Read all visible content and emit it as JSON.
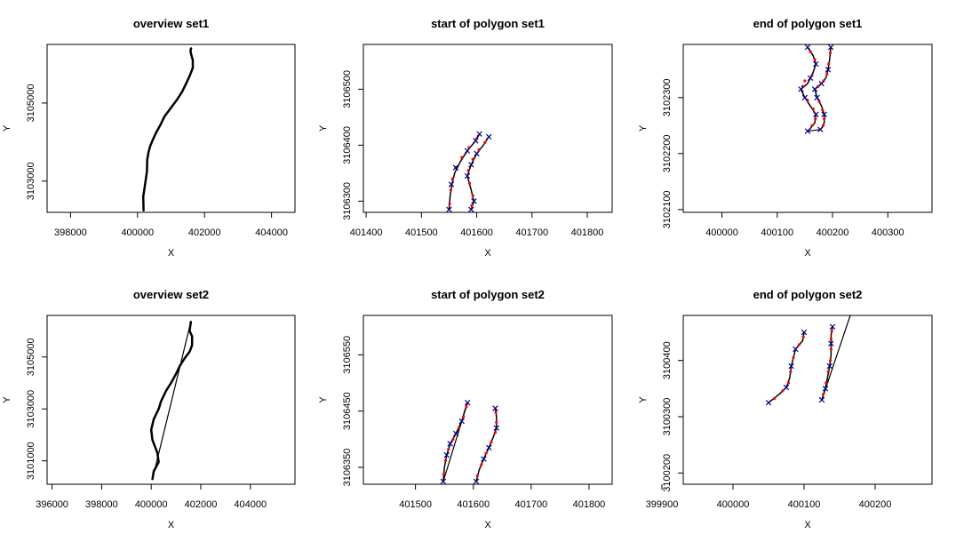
{
  "chart_data": [
    {
      "id": "p1",
      "type": "line",
      "title": "overview set1",
      "xlabel": "X",
      "ylabel": "Y",
      "xlim": [
        397300,
        404700
      ],
      "ylim": [
        3102200,
        3106500
      ],
      "xticks": [
        398000,
        400000,
        402000,
        404000
      ],
      "yticks": [
        3103000,
        3105000
      ],
      "series": [
        {
          "style": "line",
          "color": "#000000",
          "lw": 2.5,
          "x": [
            400180,
            400170,
            400230,
            400280,
            400290,
            400330,
            400380,
            400450,
            400560,
            400690,
            400800,
            400930,
            401060,
            401190,
            401340,
            401440,
            401560,
            401650,
            401650,
            401600,
            401580,
            401600
          ],
          "y": [
            3102250,
            3102600,
            3102950,
            3103250,
            3103550,
            3103750,
            3103900,
            3104050,
            3104250,
            3104450,
            3104650,
            3104800,
            3104950,
            3105100,
            3105300,
            3105480,
            3105700,
            3105900,
            3106100,
            3106250,
            3106350,
            3106400
          ]
        }
      ]
    },
    {
      "id": "p2",
      "type": "line",
      "title": "start of polygon set1",
      "xlabel": "X",
      "ylabel": "Y",
      "xlim": [
        401395,
        401845
      ],
      "ylim": [
        3106280,
        3106580
      ],
      "xticks": [
        401400,
        401500,
        401600,
        401700,
        401800
      ],
      "yticks": [
        3106300,
        3106400,
        3106500
      ],
      "series": [
        {
          "style": "line",
          "color": "#000000",
          "lw": 1.5,
          "x": [
            401550,
            401552,
            401555,
            401560,
            401570,
            401583,
            401598,
            401605
          ],
          "y": [
            3106285,
            3106310,
            3106330,
            3106350,
            3106370,
            3106390,
            3106408,
            3106420
          ]
        },
        {
          "style": "line",
          "color": "#000000",
          "lw": 1.5,
          "x": [
            401590,
            401595,
            401590,
            401583,
            401590,
            401600,
            401612,
            401622
          ],
          "y": [
            3106285,
            3106300,
            3106320,
            3106345,
            3106365,
            3106385,
            3106400,
            3106415
          ]
        },
        {
          "style": "points",
          "color": "#ff0000",
          "marker": "dot",
          "x": [
            401551,
            401553,
            401556,
            401562,
            401573,
            401586,
            401600,
            401591,
            401593,
            401587,
            401585,
            401593,
            401604,
            401615
          ],
          "y": [
            3106295,
            3106320,
            3106340,
            3106360,
            3106378,
            3106396,
            3106412,
            3106292,
            3106310,
            3106332,
            3106355,
            3106375,
            3106392,
            3106405
          ]
        },
        {
          "style": "points",
          "color": "#00008b",
          "marker": "x",
          "x": [
            401550,
            401554,
            401562,
            401583,
            401598,
            401605,
            401590,
            401595,
            401583,
            401590,
            401600,
            401622
          ],
          "y": [
            3106285,
            3106330,
            3106360,
            3106390,
            3106408,
            3106420,
            3106285,
            3106300,
            3106345,
            3106365,
            3106385,
            3106415
          ]
        }
      ]
    },
    {
      "id": "p3",
      "type": "line",
      "title": "end of polygon set1",
      "xlabel": "X",
      "ylabel": "Y",
      "xlim": [
        399930,
        400380
      ],
      "ylim": [
        3102095,
        3102395
      ],
      "xticks": [
        400000,
        400100,
        400200,
        400300
      ],
      "yticks": [
        3102100,
        3102200,
        3102300
      ],
      "series": [
        {
          "style": "line",
          "color": "#000000",
          "lw": 1.5,
          "x": [
            400155,
            400165,
            400170,
            400165,
            400160,
            400155,
            400143,
            400150,
            400160,
            400170,
            400168,
            400160,
            400155
          ],
          "y": [
            3102390,
            3102375,
            3102360,
            3102345,
            3102335,
            3102325,
            3102315,
            3102300,
            3102285,
            3102270,
            3102255,
            3102245,
            3102240
          ]
        },
        {
          "style": "line",
          "color": "#000000",
          "lw": 1.5,
          "x": [
            400197,
            400195,
            400192,
            400188,
            400180,
            400168,
            400172,
            400180,
            400185,
            400185,
            400182,
            400178
          ],
          "y": [
            3102390,
            3102370,
            3102350,
            3102335,
            3102325,
            3102315,
            3102300,
            3102285,
            3102270,
            3102255,
            3102248,
            3102243
          ]
        },
        {
          "style": "line",
          "color": "#000000",
          "lw": 1.2,
          "x": [
            400155,
            400178
          ],
          "y": [
            3102240,
            3102243
          ]
        },
        {
          "style": "points",
          "color": "#ff0000",
          "marker": "dot",
          "x": [
            400160,
            400168,
            400163,
            400150,
            400146,
            400155,
            400165,
            400169,
            400163,
            400196,
            400193,
            400190,
            400184,
            400174,
            400176,
            400182,
            400185,
            400183
          ],
          "y": [
            3102382,
            3102368,
            3102340,
            3102330,
            3102320,
            3102295,
            3102280,
            3102262,
            3102250,
            3102380,
            3102360,
            3102342,
            3102330,
            3102320,
            3102293,
            3102278,
            3102262,
            3102250
          ]
        },
        {
          "style": "points",
          "color": "#00008b",
          "marker": "x",
          "x": [
            400155,
            400170,
            400160,
            400143,
            400150,
            400170,
            400155,
            400197,
            400192,
            400180,
            400168,
            400172,
            400185,
            400178
          ],
          "y": [
            3102390,
            3102360,
            3102335,
            3102315,
            3102300,
            3102270,
            3102240,
            3102390,
            3102350,
            3102325,
            3102315,
            3102300,
            3102270,
            3102243
          ]
        }
      ]
    },
    {
      "id": "p4",
      "type": "line",
      "title": "overview set2",
      "xlabel": "X",
      "ylabel": "Y",
      "xlim": [
        395800,
        405800
      ],
      "ylim": [
        3100100,
        3106600
      ],
      "xticks": [
        396000,
        398000,
        400000,
        402000,
        404000
      ],
      "yticks": [
        3101000,
        3103000,
        3105000
      ],
      "series": [
        {
          "style": "line",
          "color": "#000000",
          "lw": 2.5,
          "x": [
            400050,
            400100,
            400300,
            400250,
            400050,
            400000,
            400100,
            400300,
            400400,
            400600,
            400800,
            401000,
            401150,
            401350,
            401550,
            401650,
            401650,
            401550,
            401600
          ],
          "y": [
            3100300,
            3100600,
            3100950,
            3101300,
            3101800,
            3102200,
            3102600,
            3103000,
            3103300,
            3103700,
            3104000,
            3104350,
            3104650,
            3104950,
            3105200,
            3105450,
            3105800,
            3106000,
            3106350
          ]
        },
        {
          "style": "line",
          "color": "#000000",
          "lw": 1.2,
          "x": [
            400050,
            401600
          ],
          "y": [
            3100300,
            3106350
          ]
        }
      ]
    },
    {
      "id": "p5",
      "type": "line",
      "title": "start of polygon set2",
      "xlabel": "X",
      "ylabel": "Y",
      "xlim": [
        401410,
        401840
      ],
      "ylim": [
        3106320,
        3106620
      ],
      "xticks": [
        401500,
        401600,
        401700,
        401800
      ],
      "yticks": [
        3106350,
        3106450,
        3106550
      ],
      "series": [
        {
          "style": "line",
          "color": "#000000",
          "lw": 1.5,
          "x": [
            401548,
            401550,
            401554,
            401560,
            401570,
            401580,
            401585,
            401590
          ],
          "y": [
            3106325,
            3106350,
            3106372,
            3106392,
            3106410,
            3106432,
            3106450,
            3106465
          ]
        },
        {
          "style": "line",
          "color": "#000000",
          "lw": 1.5,
          "x": [
            401605,
            401610,
            401618,
            401627,
            401635,
            401640,
            401640,
            401638
          ],
          "y": [
            3106325,
            3106345,
            3106365,
            3106385,
            3106405,
            3106420,
            3106440,
            3106455
          ]
        },
        {
          "style": "line",
          "color": "#000000",
          "lw": 1.2,
          "x": [
            401548,
            401590
          ],
          "y": [
            3106325,
            3106465
          ]
        },
        {
          "style": "points",
          "color": "#ff0000",
          "marker": "dot",
          "x": [
            401549,
            401552,
            401557,
            401565,
            401575,
            401583,
            401588,
            401607,
            401614,
            401622,
            401631,
            401638,
            401640,
            401639
          ],
          "y": [
            3106338,
            3106362,
            3106382,
            3106400,
            3106420,
            3106440,
            3106458,
            3106335,
            3106355,
            3106375,
            3106395,
            3106412,
            3106430,
            3106448
          ]
        },
        {
          "style": "points",
          "color": "#00008b",
          "marker": "x",
          "x": [
            401548,
            401554,
            401560,
            401570,
            401580,
            401590,
            401605,
            401618,
            401627,
            401640,
            401638
          ],
          "y": [
            3106325,
            3106372,
            3106392,
            3106410,
            3106432,
            3106465,
            3106325,
            3106365,
            3106385,
            3106420,
            3106455
          ]
        }
      ]
    },
    {
      "id": "p6",
      "type": "line",
      "title": "end of polygon set2",
      "xlabel": "X",
      "ylabel": "Y",
      "xlim": [
        399930,
        400280
      ],
      "ylim": [
        3100180,
        3100480
      ],
      "xticks": [
        399900,
        400000,
        400100,
        400200
      ],
      "yticks": [
        3100200,
        3100300,
        3100400
      ],
      "series": [
        {
          "style": "line",
          "color": "#000000",
          "lw": 1.5,
          "x": [
            400050,
            400065,
            400075,
            400080,
            400082,
            400088,
            400098,
            400100
          ],
          "y": [
            3100325,
            3100340,
            3100352,
            3100370,
            3100390,
            3100420,
            3100435,
            3100450
          ]
        },
        {
          "style": "line",
          "color": "#000000",
          "lw": 1.5,
          "x": [
            400125,
            400130,
            400133,
            400136,
            400138,
            400138,
            400138,
            400140
          ],
          "y": [
            3100330,
            3100350,
            3100370,
            3100390,
            3100410,
            3100430,
            3100445,
            3100460
          ]
        },
        {
          "style": "line",
          "color": "#000000",
          "lw": 1.2,
          "x": [
            400125,
            400165
          ],
          "y": [
            3100330,
            3100480
          ]
        },
        {
          "style": "points",
          "color": "#ff0000",
          "marker": "dot",
          "x": [
            400058,
            400070,
            400078,
            400081,
            400085,
            400093,
            400099,
            400127,
            400131,
            400134,
            400137,
            400138,
            400138,
            400139
          ],
          "y": [
            3100332,
            3100346,
            3100360,
            3100380,
            3100405,
            3100428,
            3100442,
            3100340,
            3100360,
            3100380,
            3100400,
            3100420,
            3100438,
            3100452
          ]
        },
        {
          "style": "points",
          "color": "#00008b",
          "marker": "x",
          "x": [
            400050,
            400075,
            400082,
            400088,
            400100,
            400125,
            400130,
            400136,
            400138,
            400140
          ],
          "y": [
            3100325,
            3100352,
            3100390,
            3100420,
            3100450,
            3100330,
            3100350,
            3100390,
            3100430,
            3100460
          ]
        }
      ]
    }
  ]
}
